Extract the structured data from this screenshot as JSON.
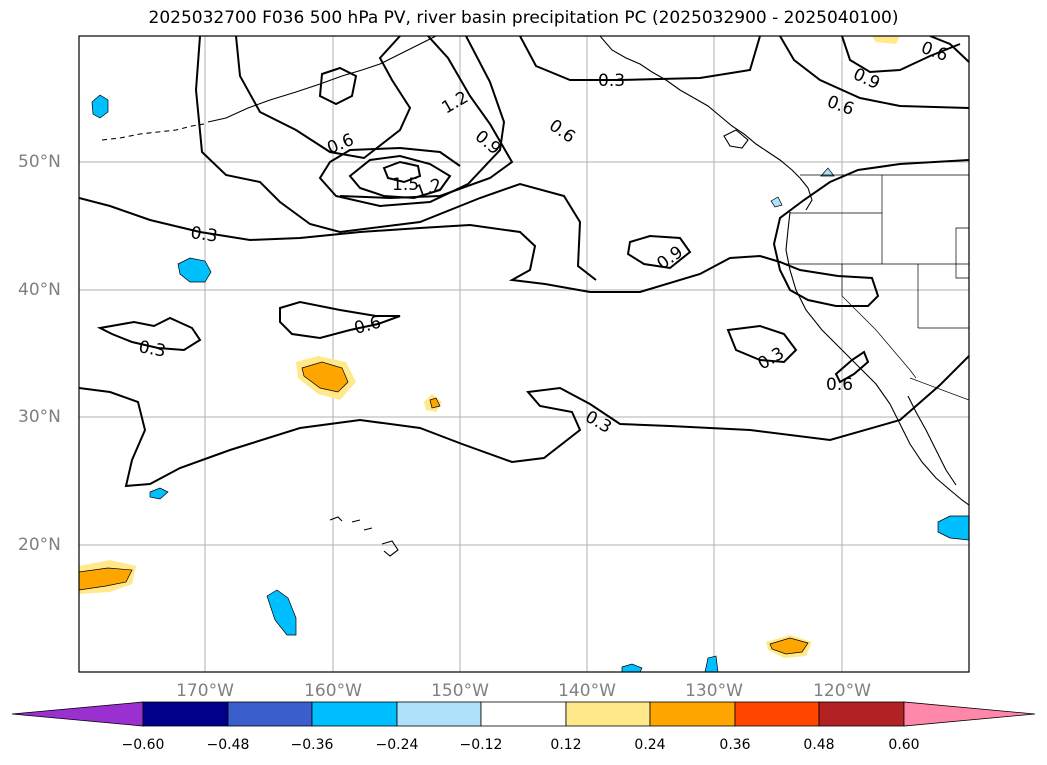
{
  "title": "2025032700 F036 500 hPa PV, river basin precipitation PC (2025032900 - 2025040100)",
  "latitude_labels": [
    "50°N",
    "40°N",
    "30°N",
    "20°N"
  ],
  "longitude_labels": [
    "170°W",
    "160°W",
    "150°W",
    "140°W",
    "130°W",
    "120°W"
  ],
  "contour_labels": [
    "0.3",
    "0.6",
    "0.9",
    "1.2",
    "1.5"
  ],
  "colorbar": {
    "tick_labels": [
      "−0.60",
      "−0.48",
      "−0.36",
      "−0.24",
      "−0.12",
      "0.12",
      "0.24",
      "0.36",
      "0.48",
      "0.60"
    ],
    "colors": [
      "#9b30d0",
      "#00008b",
      "#3a5fcd",
      "#00bfff",
      "#aee2fa",
      "#ffffff",
      "#ffe98a",
      "#ffa500",
      "#ff4500",
      "#b22222",
      "#ff88aa"
    ]
  },
  "grid_color": "#b0b0b0",
  "label_color": "#808080"
}
